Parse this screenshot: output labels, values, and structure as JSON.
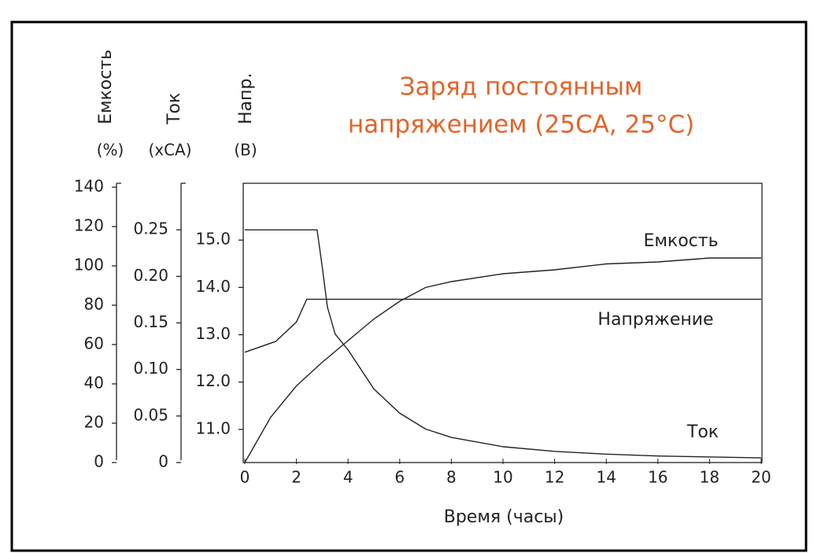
{
  "chart_data": {
    "type": "line",
    "title": [
      "Заряд постоянным",
      "напряжением (25CA, 25°C)"
    ],
    "title_color": "#e2642a",
    "x_label": "Время (часы)",
    "xlim": [
      0,
      20
    ],
    "xticks": [
      0,
      2,
      4,
      6,
      8,
      10,
      12,
      14,
      16,
      18,
      20
    ],
    "y_axes": [
      {
        "label": "Емкость",
        "unit": "(%)",
        "lim": [
          0,
          142
        ],
        "ticks": [
          0,
          20,
          40,
          60,
          80,
          100,
          120,
          140
        ]
      },
      {
        "label": "Ток",
        "unit": "(xCA)",
        "lim": [
          0,
          0.3
        ],
        "ticks": [
          0,
          {
            "value": 0.05,
            "label": "0.05"
          },
          {
            "value": 0.1,
            "label": "0.10"
          },
          {
            "value": 0.15,
            "label": "0.15"
          },
          {
            "value": 0.2,
            "label": "0.20"
          },
          0.25
        ]
      },
      {
        "label": "Напр.",
        "unit": "(B)",
        "lim": [
          10.3,
          16.2
        ],
        "ticks": [
          {
            "value": 11,
            "label": "11.0"
          },
          {
            "value": 12,
            "label": "12.0"
          },
          {
            "value": 13,
            "label": "13.0"
          },
          {
            "value": 14,
            "label": "14.0"
          },
          {
            "value": 15,
            "label": "15.0"
          }
        ]
      }
    ],
    "series": [
      {
        "name": "Емкость",
        "axis": 0,
        "color": "#222222",
        "x": [
          0,
          1,
          2,
          3,
          4,
          5,
          6,
          7,
          8,
          10,
          12,
          14,
          16,
          18,
          20
        ],
        "values": [
          0,
          23,
          39,
          51,
          62,
          73,
          82,
          89,
          92,
          96,
          98,
          101,
          102,
          104,
          104
        ]
      },
      {
        "name": "Напряжение",
        "axis": 2,
        "color": "#222222",
        "x": [
          0,
          1.2,
          2,
          2.4,
          20
        ],
        "values": [
          12.63,
          12.86,
          13.27,
          13.75,
          13.75
        ]
      },
      {
        "name": "Ток",
        "axis": 1,
        "color": "#222222",
        "x": [
          0,
          2.8,
          3,
          3.2,
          3.5,
          4,
          5,
          6,
          7,
          8,
          10,
          12,
          14,
          16,
          20
        ],
        "values": [
          0.25,
          0.25,
          0.21,
          0.167,
          0.138,
          0.121,
          0.079,
          0.053,
          0.036,
          0.027,
          0.017,
          0.012,
          0.009,
          0.007,
          0.005
        ]
      }
    ]
  }
}
